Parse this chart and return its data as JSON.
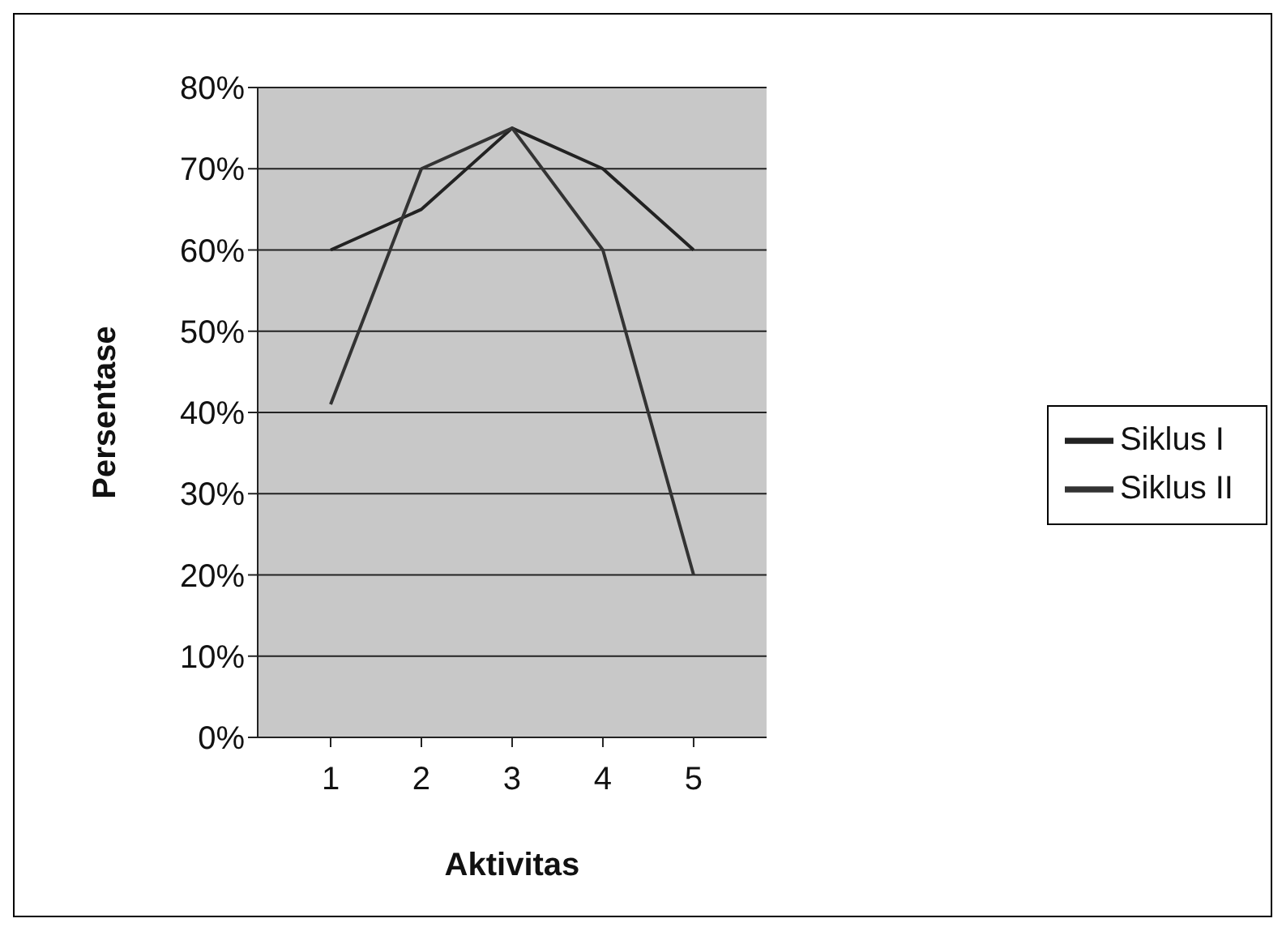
{
  "chart_data": {
    "type": "line",
    "xlabel": "Aktivitas",
    "ylabel": "Persentase",
    "categories": [
      "1",
      "2",
      "3",
      "4",
      "5"
    ],
    "series": [
      {
        "name": "Siklus I",
        "color": "#222222",
        "values": [
          60,
          65,
          75,
          70,
          60
        ]
      },
      {
        "name": "Siklus II",
        "color": "#333333",
        "values": [
          41,
          70,
          75,
          60,
          20
        ]
      }
    ],
    "ylim": [
      0,
      80
    ],
    "yticks": [
      {
        "value": 0,
        "label": "0%"
      },
      {
        "value": 10,
        "label": "10%"
      },
      {
        "value": 20,
        "label": "20%"
      },
      {
        "value": 30,
        "label": "30%"
      },
      {
        "value": 40,
        "label": "40%"
      },
      {
        "value": 50,
        "label": "50%"
      },
      {
        "value": 60,
        "label": "60%"
      },
      {
        "value": 70,
        "label": "70%"
      },
      {
        "value": 80,
        "label": "80%"
      }
    ],
    "grid": "y",
    "legend": "right",
    "marker": "none"
  }
}
